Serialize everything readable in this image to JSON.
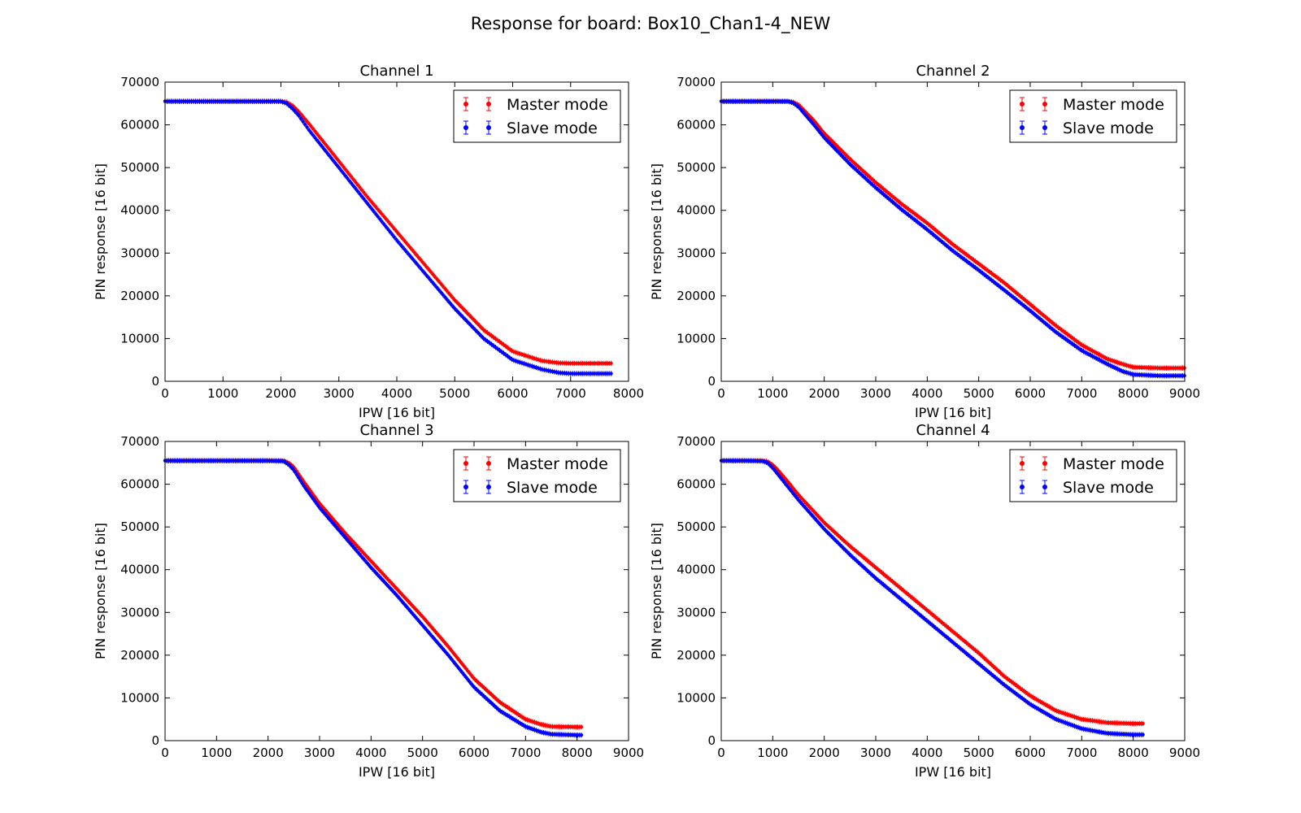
{
  "figure": {
    "title": "Response for board: Box10_Chan1-4_NEW"
  },
  "chart_data": [
    {
      "type": "scatter",
      "title": "Channel 1",
      "xlabel": "IPW [16 bit]",
      "ylabel": "PIN response [16 bit]",
      "xlim": [
        0,
        8000
      ],
      "ylim": [
        0,
        70000
      ],
      "xticks": [
        "0",
        "1000",
        "2000",
        "3000",
        "4000",
        "5000",
        "6000",
        "7000",
        "8000"
      ],
      "yticks": [
        "0",
        "10000",
        "20000",
        "30000",
        "40000",
        "50000",
        "60000",
        "70000"
      ],
      "legend_position": "upper right",
      "grid": false,
      "error_bars": true,
      "series": [
        {
          "name": "Master mode",
          "color": "#ff0000",
          "x": [
            0,
            500,
            1000,
            1500,
            2000,
            2100,
            2200,
            2300,
            2500,
            3000,
            3500,
            4000,
            4500,
            5000,
            5500,
            6000,
            6500,
            6800,
            7000,
            7500,
            7700
          ],
          "y": [
            65500,
            65500,
            65500,
            65500,
            65500,
            65300,
            64500,
            63200,
            60000,
            51500,
            43000,
            35000,
            27000,
            19000,
            12000,
            7000,
            4800,
            4300,
            4200,
            4200,
            4200
          ]
        },
        {
          "name": "Slave mode",
          "color": "#0000ff",
          "x": [
            0,
            500,
            1000,
            1500,
            2000,
            2100,
            2200,
            2300,
            2500,
            3000,
            3500,
            4000,
            4500,
            5000,
            5500,
            6000,
            6500,
            6800,
            7000,
            7500,
            7700
          ],
          "y": [
            65500,
            65500,
            65500,
            65500,
            65500,
            65000,
            63800,
            62300,
            58500,
            50000,
            41500,
            33000,
            25000,
            17000,
            10000,
            5000,
            2800,
            2000,
            1800,
            1800,
            1800
          ]
        }
      ]
    },
    {
      "type": "scatter",
      "title": "Channel 2",
      "xlabel": "IPW [16 bit]",
      "ylabel": "PIN response [16 bit]",
      "xlim": [
        0,
        9000
      ],
      "ylim": [
        0,
        70000
      ],
      "xticks": [
        "0",
        "1000",
        "2000",
        "3000",
        "4000",
        "5000",
        "6000",
        "7000",
        "8000",
        "9000"
      ],
      "yticks": [
        "0",
        "10000",
        "20000",
        "30000",
        "40000",
        "50000",
        "60000",
        "70000"
      ],
      "legend_position": "upper right",
      "grid": false,
      "error_bars": true,
      "series": [
        {
          "name": "Master mode",
          "color": "#ff0000",
          "x": [
            0,
            500,
            1000,
            1300,
            1400,
            1500,
            1600,
            1800,
            2000,
            2500,
            3000,
            3500,
            4000,
            4500,
            5000,
            5500,
            6000,
            6500,
            7000,
            7500,
            7800,
            8000,
            8500,
            9000
          ],
          "y": [
            65500,
            65500,
            65500,
            65500,
            65300,
            64700,
            63500,
            61000,
            58000,
            52000,
            46500,
            41500,
            37000,
            32000,
            27500,
            23000,
            18000,
            13000,
            8500,
            5200,
            4000,
            3300,
            3100,
            3100
          ]
        },
        {
          "name": "Slave mode",
          "color": "#0000ff",
          "x": [
            0,
            500,
            1000,
            1300,
            1400,
            1500,
            1600,
            1800,
            2000,
            2500,
            3000,
            3500,
            4000,
            4500,
            5000,
            5500,
            6000,
            6500,
            7000,
            7500,
            7800,
            8000,
            8500,
            9000
          ],
          "y": [
            65500,
            65500,
            65500,
            65500,
            65100,
            64200,
            62800,
            60000,
            57000,
            50800,
            45300,
            40200,
            35500,
            30500,
            26000,
            21300,
            16500,
            11500,
            7200,
            4000,
            2300,
            1600,
            1300,
            1300
          ]
        }
      ]
    },
    {
      "type": "scatter",
      "title": "Channel 3",
      "xlabel": "IPW [16 bit]",
      "ylabel": "PIN response [16 bit]",
      "xlim": [
        0,
        9000
      ],
      "ylim": [
        0,
        70000
      ],
      "xticks": [
        "0",
        "1000",
        "2000",
        "3000",
        "4000",
        "5000",
        "6000",
        "7000",
        "8000",
        "9000"
      ],
      "yticks": [
        "0",
        "10000",
        "20000",
        "30000",
        "40000",
        "50000",
        "60000",
        "70000"
      ],
      "legend_position": "upper right",
      "grid": false,
      "error_bars": true,
      "series": [
        {
          "name": "Master mode",
          "color": "#ff0000",
          "x": [
            0,
            500,
            1000,
            1500,
            2000,
            2300,
            2400,
            2500,
            2700,
            3000,
            3500,
            4000,
            4500,
            5000,
            5500,
            6000,
            6500,
            7000,
            7300,
            7500,
            8000,
            8100
          ],
          "y": [
            65500,
            65500,
            65500,
            65500,
            65500,
            65500,
            65000,
            64000,
            60500,
            55500,
            48500,
            42000,
            35500,
            29000,
            22000,
            14500,
            9000,
            5000,
            3800,
            3300,
            3200,
            3200
          ]
        },
        {
          "name": "Slave mode",
          "color": "#0000ff",
          "x": [
            0,
            500,
            1000,
            1500,
            2000,
            2300,
            2400,
            2500,
            2700,
            3000,
            3500,
            4000,
            4500,
            5000,
            5500,
            6000,
            6500,
            7000,
            7300,
            7500,
            8000,
            8100
          ],
          "y": [
            65500,
            65500,
            65500,
            65500,
            65500,
            65400,
            64600,
            63300,
            59500,
            54500,
            47500,
            40500,
            34000,
            27000,
            20000,
            12500,
            7000,
            3300,
            2000,
            1500,
            1300,
            1300
          ]
        }
      ]
    },
    {
      "type": "scatter",
      "title": "Channel 4",
      "xlabel": "IPW [16 bit]",
      "ylabel": "PIN response [16 bit]",
      "xlim": [
        0,
        9000
      ],
      "ylim": [
        0,
        70000
      ],
      "xticks": [
        "0",
        "1000",
        "2000",
        "3000",
        "4000",
        "5000",
        "6000",
        "7000",
        "8000",
        "9000"
      ],
      "yticks": [
        "0",
        "10000",
        "20000",
        "30000",
        "40000",
        "50000",
        "60000",
        "70000"
      ],
      "legend_position": "upper right",
      "grid": false,
      "error_bars": true,
      "series": [
        {
          "name": "Master mode",
          "color": "#ff0000",
          "x": [
            0,
            500,
            800,
            900,
            1000,
            1100,
            1300,
            1500,
            2000,
            2500,
            3000,
            3500,
            4000,
            4500,
            5000,
            5500,
            6000,
            6500,
            7000,
            7500,
            8000,
            8200
          ],
          "y": [
            65500,
            65500,
            65500,
            65300,
            64500,
            63300,
            60500,
            57500,
            51000,
            45500,
            40500,
            35500,
            30500,
            25500,
            20500,
            15000,
            10500,
            7000,
            5000,
            4200,
            4000,
            4000
          ]
        },
        {
          "name": "Slave mode",
          "color": "#0000ff",
          "x": [
            0,
            500,
            800,
            900,
            1000,
            1100,
            1300,
            1500,
            2000,
            2500,
            3000,
            3500,
            4000,
            4500,
            5000,
            5500,
            6000,
            6500,
            7000,
            7500,
            8000,
            8200
          ],
          "y": [
            65500,
            65500,
            65400,
            65000,
            63800,
            62300,
            59300,
            56300,
            49500,
            43500,
            38000,
            33000,
            28000,
            23000,
            18000,
            13000,
            8500,
            5000,
            2800,
            1700,
            1400,
            1400
          ]
        }
      ]
    }
  ]
}
